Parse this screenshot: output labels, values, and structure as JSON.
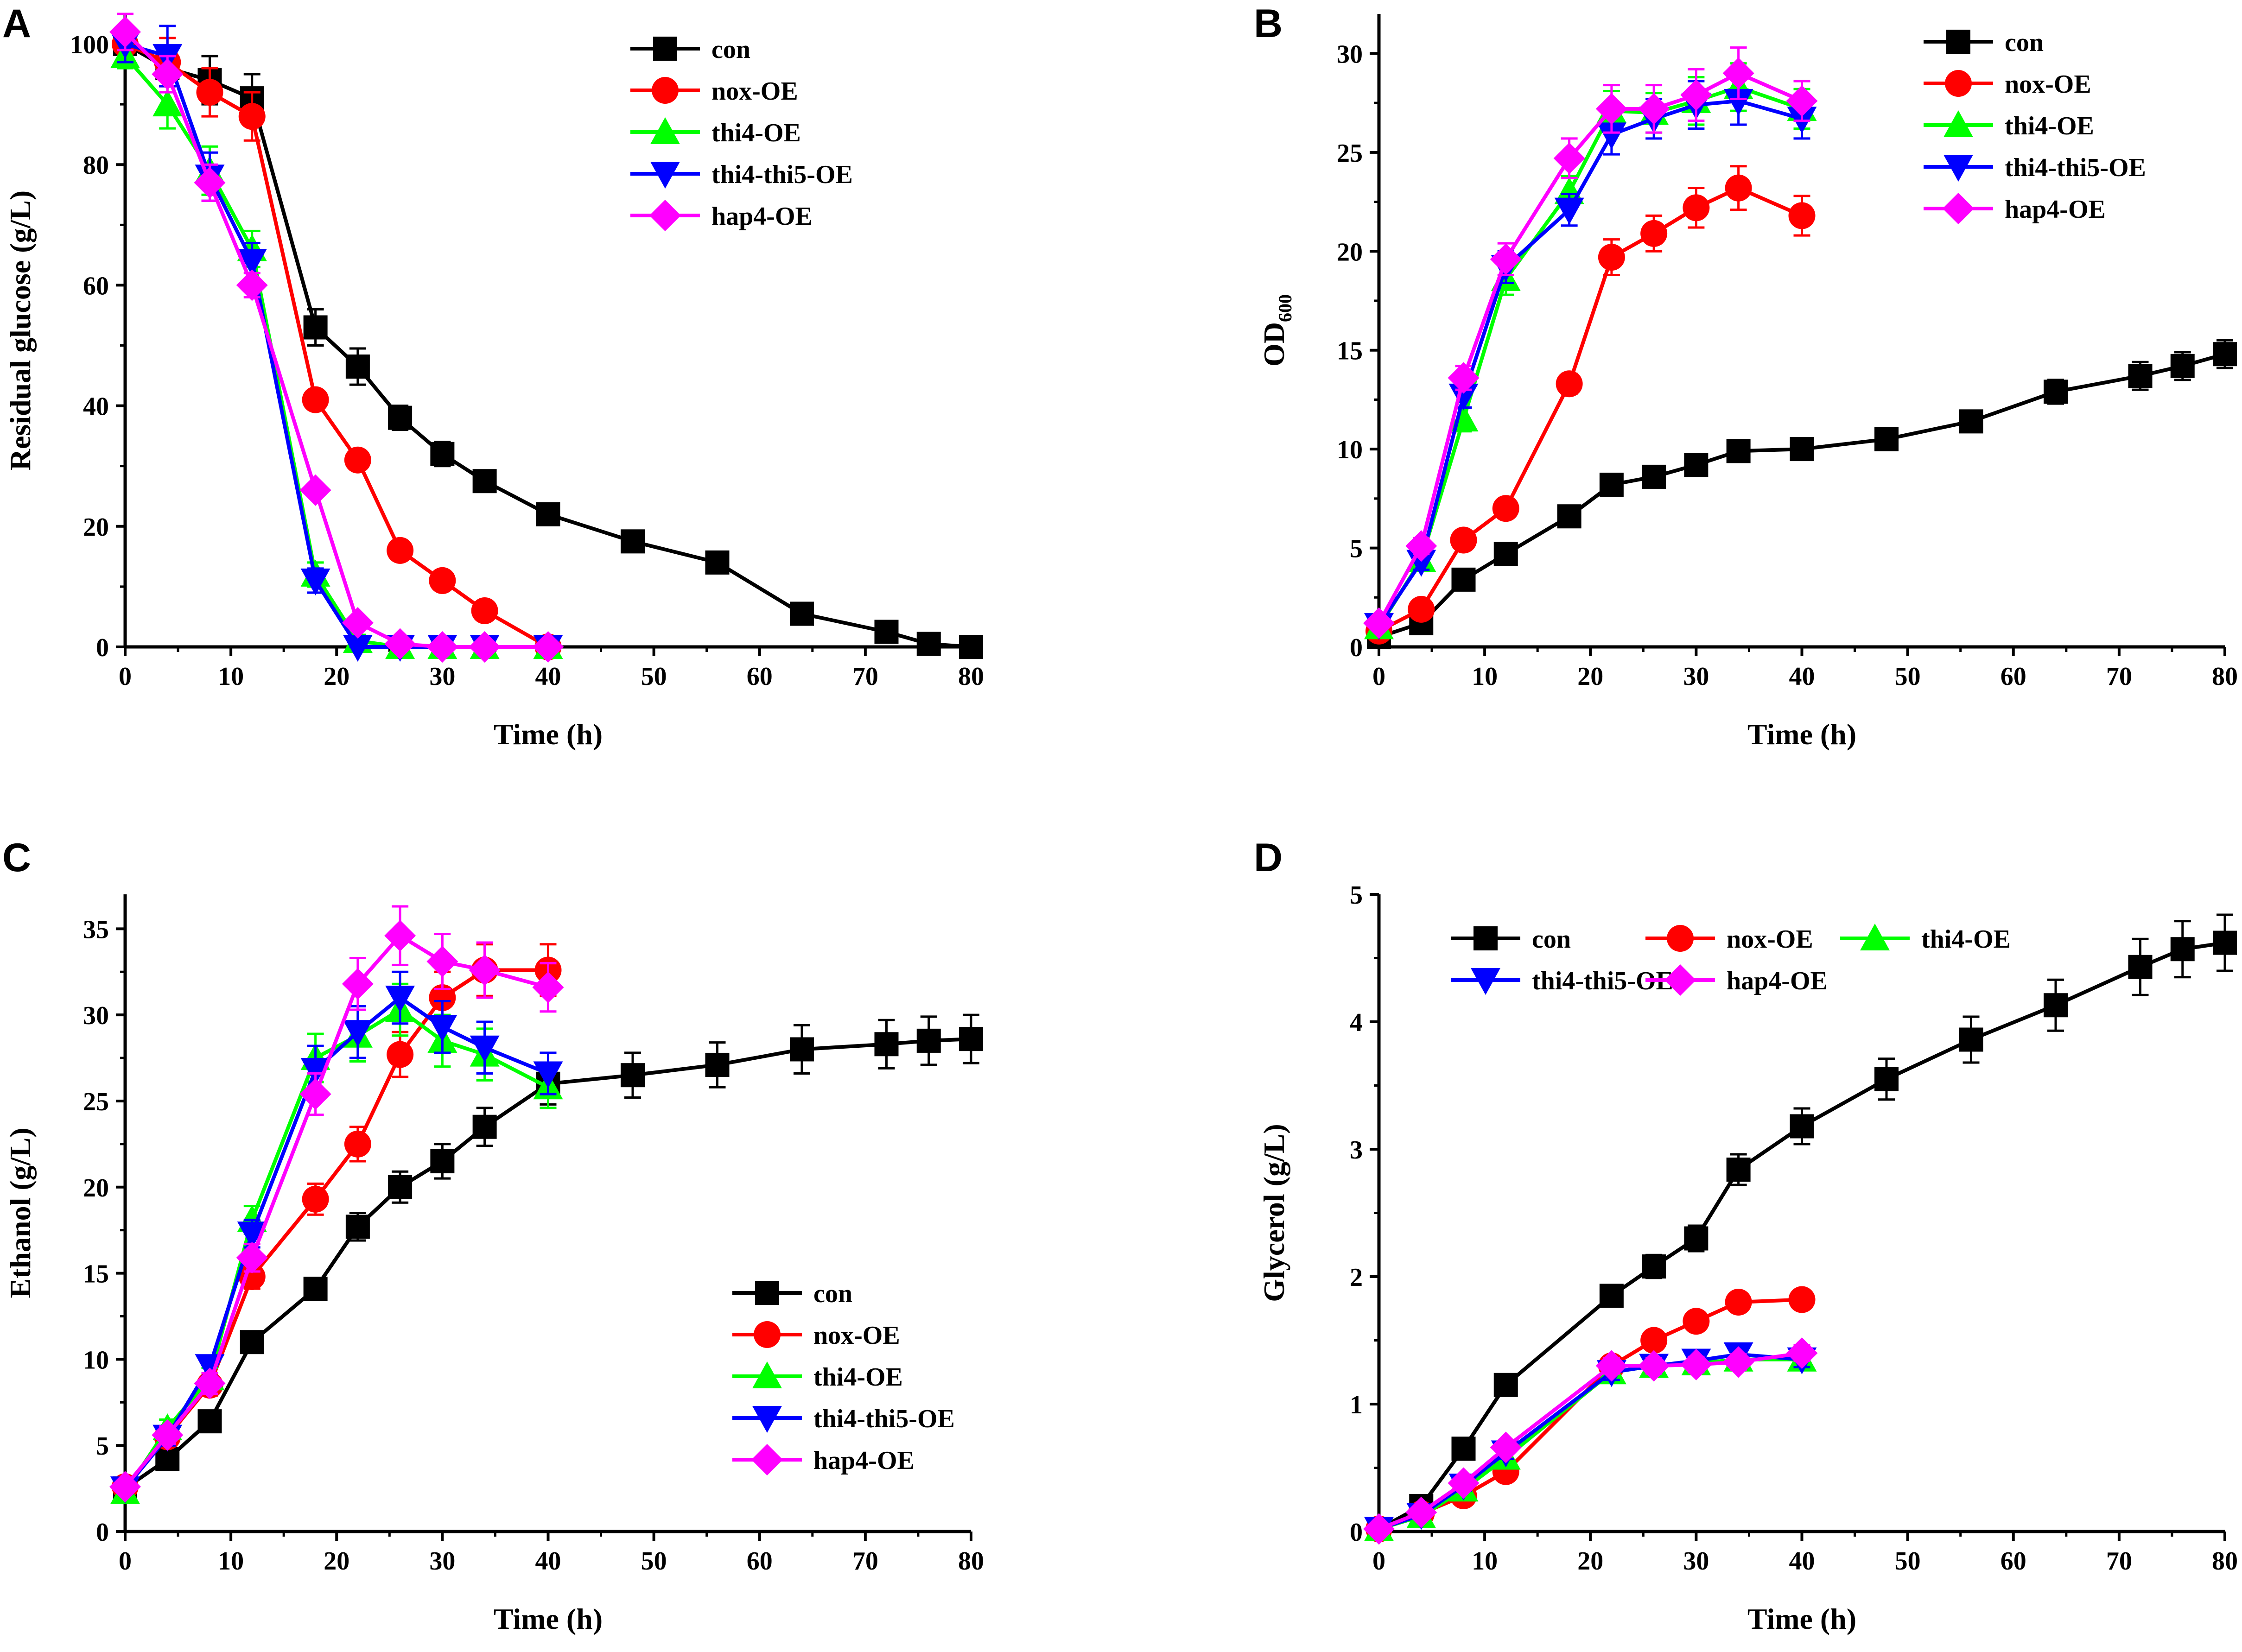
{
  "colors": {
    "con": "#000000",
    "nox-OE": "#ff0000",
    "thi4-OE": "#00ff00",
    "thi4-thi5-OE": "#0000ff",
    "hap4-OE": "#ff00ff"
  },
  "chart_data": [
    {
      "panel": "A",
      "type": "line",
      "title": "",
      "xlabel": "Time (h)",
      "ylabel": "Residual glucose (g/L)",
      "ylabel_sub": "",
      "xlim": [
        0,
        80
      ],
      "ylim": [
        0,
        105
      ],
      "xticks": [
        0,
        10,
        20,
        30,
        40,
        50,
        60,
        70,
        80
      ],
      "yticks": [
        0,
        20,
        40,
        60,
        80,
        100
      ],
      "legend_position": "top-right",
      "legend_layout": "vertical",
      "series": [
        {
          "name": "con",
          "marker": "square",
          "x": [
            0,
            4,
            8,
            12,
            18,
            22,
            26,
            30,
            34,
            40,
            48,
            56,
            64,
            72,
            76,
            80
          ],
          "y": [
            100,
            96,
            94,
            91,
            53,
            46.5,
            38,
            32,
            27.5,
            22,
            17.5,
            14,
            5.5,
            2.5,
            0.5,
            0
          ],
          "err": [
            2,
            2,
            4,
            4,
            3,
            3,
            2,
            2,
            1.5,
            1.5,
            1,
            1,
            1,
            1,
            0.5,
            0.5
          ]
        },
        {
          "name": "nox-OE",
          "marker": "circle",
          "x": [
            0,
            4,
            8,
            12,
            18,
            22,
            26,
            30,
            34,
            40
          ],
          "y": [
            100,
            97,
            92,
            88,
            41,
            31,
            16,
            11,
            6,
            0
          ],
          "err": [
            2,
            4,
            4,
            4,
            1,
            1,
            1,
            1,
            1,
            0.5
          ]
        },
        {
          "name": "thi4-OE",
          "marker": "triangle",
          "x": [
            0,
            4,
            8,
            12,
            18,
            22,
            26,
            30,
            34,
            40
          ],
          "y": [
            98,
            90,
            79,
            66,
            12,
            1,
            0,
            0,
            0,
            0
          ],
          "err": [
            2,
            4,
            4,
            3,
            2,
            1,
            0.5,
            0.5,
            0.5,
            0.5
          ]
        },
        {
          "name": "thi4-thi5-OE",
          "marker": "triangle-down",
          "x": [
            0,
            4,
            8,
            12,
            18,
            22,
            26,
            30,
            34,
            40
          ],
          "y": [
            100,
            98,
            78,
            64,
            11,
            0,
            0,
            0,
            0,
            0
          ],
          "err": [
            3,
            5,
            4,
            3,
            2,
            1,
            0.5,
            0.5,
            0.5,
            0.5
          ]
        },
        {
          "name": "hap4-OE",
          "marker": "diamond",
          "x": [
            0,
            4,
            8,
            12,
            18,
            22,
            26,
            30,
            34,
            40
          ],
          "y": [
            102,
            95,
            77,
            60,
            26,
            4,
            0.5,
            0,
            0,
            0
          ],
          "err": [
            3,
            3,
            3,
            2,
            1,
            1,
            0.5,
            0.5,
            0.5,
            0.5
          ]
        }
      ]
    },
    {
      "panel": "B",
      "type": "line",
      "title": "",
      "xlabel": "Time (h)",
      "ylabel": "OD",
      "ylabel_sub": "600",
      "xlim": [
        0,
        80
      ],
      "ylim": [
        0,
        32
      ],
      "xticks": [
        0,
        10,
        20,
        30,
        40,
        50,
        60,
        70,
        80
      ],
      "yticks": [
        0,
        5,
        10,
        15,
        20,
        25,
        30
      ],
      "legend_position": "top-right",
      "legend_layout": "vertical",
      "series": [
        {
          "name": "con",
          "marker": "square",
          "x": [
            0,
            4,
            8,
            12,
            18,
            22,
            26,
            30,
            34,
            40,
            48,
            56,
            64,
            72,
            76,
            80
          ],
          "y": [
            0.5,
            1.2,
            3.4,
            4.7,
            6.6,
            8.2,
            8.6,
            9.2,
            9.9,
            10.0,
            10.5,
            11.4,
            12.9,
            13.7,
            14.2,
            14.8
          ],
          "err": [
            0.2,
            0.3,
            0.3,
            0.3,
            0.3,
            0.3,
            0.4,
            0.4,
            0.4,
            0.4,
            0.4,
            0.5,
            0.6,
            0.7,
            0.7,
            0.7
          ]
        },
        {
          "name": "nox-OE",
          "marker": "circle",
          "x": [
            0,
            4,
            8,
            12,
            18,
            22,
            26,
            30,
            34,
            40
          ],
          "y": [
            0.8,
            1.9,
            5.4,
            7.0,
            13.3,
            19.7,
            20.9,
            22.2,
            23.2,
            21.8
          ],
          "err": [
            0.2,
            0.3,
            0.4,
            0.4,
            0.5,
            0.9,
            0.9,
            1.0,
            1.1,
            1.0
          ]
        },
        {
          "name": "thi4-OE",
          "marker": "triangle",
          "x": [
            0,
            4,
            8,
            12,
            18,
            22,
            26,
            30,
            34,
            40
          ],
          "y": [
            1.0,
            4.4,
            11.5,
            18.6,
            23.0,
            27.1,
            27.0,
            27.6,
            28.3,
            27.2
          ],
          "err": [
            0.2,
            0.4,
            0.6,
            0.8,
            0.8,
            1.0,
            1.0,
            1.2,
            1.2,
            1.0
          ]
        },
        {
          "name": "thi4-thi5-OE",
          "marker": "triangle-down",
          "x": [
            0,
            4,
            8,
            12,
            18,
            22,
            26,
            30,
            34,
            40
          ],
          "y": [
            1.1,
            4.3,
            12.7,
            19.2,
            22.1,
            25.9,
            26.7,
            27.4,
            27.6,
            26.7
          ],
          "err": [
            0.2,
            0.4,
            0.6,
            0.8,
            0.8,
            1.0,
            1.0,
            1.2,
            1.2,
            1.0
          ]
        },
        {
          "name": "hap4-OE",
          "marker": "diamond",
          "x": [
            0,
            4,
            8,
            12,
            18,
            22,
            26,
            30,
            34,
            40
          ],
          "y": [
            1.2,
            5.1,
            13.6,
            19.6,
            24.7,
            27.2,
            27.2,
            27.9,
            29.0,
            27.6
          ],
          "err": [
            0.2,
            0.4,
            0.6,
            0.8,
            1.0,
            1.2,
            1.2,
            1.3,
            1.3,
            1.0
          ]
        }
      ]
    },
    {
      "panel": "C",
      "type": "line",
      "title": "",
      "xlabel": "Time (h)",
      "ylabel": "Ethanol (g/L)",
      "ylabel_sub": "",
      "xlim": [
        0,
        80
      ],
      "ylim": [
        0,
        37
      ],
      "xticks": [
        0,
        10,
        20,
        30,
        40,
        50,
        60,
        70,
        80
      ],
      "yticks": [
        0,
        5,
        10,
        15,
        20,
        25,
        30,
        35
      ],
      "legend_position": "bottom-right",
      "legend_layout": "vertical",
      "series": [
        {
          "name": "con",
          "marker": "square",
          "x": [
            0,
            4,
            8,
            12,
            18,
            22,
            26,
            30,
            34,
            40,
            48,
            56,
            64,
            72,
            76,
            80
          ],
          "y": [
            2.5,
            4.2,
            6.4,
            11.0,
            14.1,
            17.7,
            20.0,
            21.5,
            23.5,
            26.0,
            26.5,
            27.1,
            28.0,
            28.3,
            28.5,
            28.6
          ],
          "err": [
            0.3,
            0.4,
            0.5,
            0.5,
            0.6,
            0.8,
            0.9,
            1.0,
            1.1,
            1.2,
            1.3,
            1.3,
            1.4,
            1.4,
            1.4,
            1.4
          ]
        },
        {
          "name": "nox-OE",
          "marker": "circle",
          "x": [
            0,
            4,
            8,
            12,
            18,
            22,
            26,
            30,
            34,
            40
          ],
          "y": [
            2.6,
            5.5,
            8.5,
            14.8,
            19.3,
            22.5,
            27.7,
            31.0,
            32.6,
            32.6
          ],
          "err": [
            0.3,
            0.5,
            0.6,
            0.7,
            0.9,
            1.0,
            1.3,
            1.5,
            1.5,
            1.5
          ]
        },
        {
          "name": "thi4-OE",
          "marker": "triangle",
          "x": [
            0,
            4,
            8,
            12,
            18,
            22,
            26,
            30,
            34,
            40
          ],
          "y": [
            2.3,
            6.0,
            8.9,
            18.1,
            27.5,
            28.8,
            30.3,
            28.5,
            27.7,
            25.8
          ],
          "err": [
            0.3,
            0.5,
            0.6,
            0.8,
            1.4,
            1.5,
            1.5,
            1.5,
            1.5,
            1.2
          ]
        },
        {
          "name": "thi4-thi5-OE",
          "marker": "triangle-down",
          "x": [
            0,
            4,
            8,
            12,
            18,
            22,
            26,
            30,
            34,
            40
          ],
          "y": [
            2.5,
            5.5,
            9.6,
            17.3,
            26.8,
            29.0,
            31.0,
            29.3,
            28.1,
            26.6
          ],
          "err": [
            0.3,
            0.5,
            0.6,
            0.8,
            1.4,
            1.5,
            1.5,
            1.5,
            1.5,
            1.2
          ]
        },
        {
          "name": "hap4-OE",
          "marker": "diamond",
          "x": [
            0,
            4,
            8,
            12,
            18,
            22,
            26,
            30,
            34,
            40
          ],
          "y": [
            2.6,
            5.6,
            8.6,
            15.9,
            25.4,
            31.8,
            34.6,
            33.1,
            32.6,
            31.6
          ],
          "err": [
            0.3,
            0.5,
            0.6,
            0.8,
            1.2,
            1.5,
            1.7,
            1.6,
            1.6,
            1.4
          ]
        }
      ]
    },
    {
      "panel": "D",
      "type": "line",
      "title": "",
      "xlabel": "Time (h)",
      "ylabel": "Glycerol (g/L)",
      "ylabel_sub": "",
      "xlim": [
        0,
        80
      ],
      "ylim": [
        0,
        5
      ],
      "xticks": [
        0,
        10,
        20,
        30,
        40,
        50,
        60,
        70,
        80
      ],
      "yticks": [
        0,
        1,
        2,
        3,
        4,
        5
      ],
      "legend_position": "top-left",
      "legend_layout": "grid-3-columns",
      "series": [
        {
          "name": "con",
          "marker": "square",
          "x": [
            0,
            4,
            8,
            12,
            22,
            26,
            30,
            34,
            40,
            48,
            56,
            64,
            72,
            76,
            80
          ],
          "y": [
            0.02,
            0.2,
            0.65,
            1.15,
            1.85,
            2.08,
            2.3,
            2.84,
            3.18,
            3.55,
            3.86,
            4.13,
            4.43,
            4.57,
            4.62
          ],
          "err": [
            0.02,
            0.03,
            0.05,
            0.06,
            0.08,
            0.09,
            0.1,
            0.12,
            0.14,
            0.16,
            0.18,
            0.2,
            0.22,
            0.22,
            0.22
          ]
        },
        {
          "name": "nox-OE",
          "marker": "circle",
          "x": [
            0,
            4,
            8,
            12,
            22,
            26,
            30,
            34,
            40
          ],
          "y": [
            0.02,
            0.14,
            0.28,
            0.47,
            1.3,
            1.5,
            1.65,
            1.8,
            1.82
          ],
          "err": [
            0.02,
            0.03,
            0.04,
            0.05,
            0.06,
            0.06,
            0.07,
            0.07,
            0.07
          ]
        },
        {
          "name": "thi4-OE",
          "marker": "triangle",
          "x": [
            0,
            4,
            8,
            12,
            22,
            26,
            30,
            34,
            40
          ],
          "y": [
            0.02,
            0.12,
            0.33,
            0.58,
            1.25,
            1.3,
            1.32,
            1.35,
            1.35
          ],
          "err": [
            0.02,
            0.03,
            0.04,
            0.05,
            0.06,
            0.06,
            0.06,
            0.06,
            0.06
          ]
        },
        {
          "name": "thi4-thi5-OE",
          "marker": "triangle-down",
          "x": [
            0,
            4,
            8,
            12,
            22,
            26,
            30,
            34,
            40
          ],
          "y": [
            0.02,
            0.13,
            0.36,
            0.62,
            1.25,
            1.3,
            1.34,
            1.39,
            1.35
          ],
          "err": [
            0.02,
            0.03,
            0.04,
            0.05,
            0.06,
            0.06,
            0.06,
            0.06,
            0.06
          ]
        },
        {
          "name": "hap4-OE",
          "marker": "diamond",
          "x": [
            0,
            4,
            8,
            12,
            22,
            26,
            30,
            34,
            40
          ],
          "y": [
            0.02,
            0.15,
            0.38,
            0.66,
            1.3,
            1.3,
            1.31,
            1.33,
            1.4
          ],
          "err": [
            0.02,
            0.03,
            0.04,
            0.05,
            0.06,
            0.06,
            0.06,
            0.06,
            0.06
          ]
        }
      ]
    }
  ]
}
